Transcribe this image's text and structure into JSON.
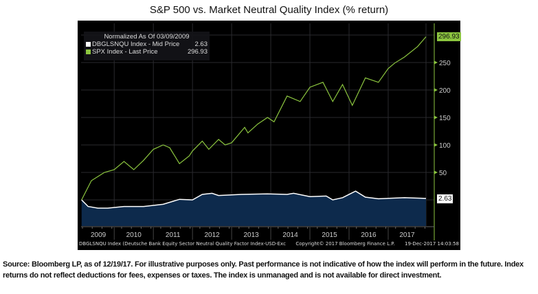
{
  "chart_data": {
    "type": "line",
    "title": "S&P 500 vs. Market Neutral Quality Index (% return)",
    "legend": {
      "header": "Normalized As Of 03/09/2009",
      "placement": "top-left",
      "entries": [
        {
          "name": "DBGLSNQU Index - Mid Price",
          "last": "2.63",
          "color": "#ffffff"
        },
        {
          "name": "SPX Index - Last Price",
          "last": "296.93",
          "color": "#8cc63f"
        }
      ]
    },
    "x_tick_labels": [
      "2009",
      "2010",
      "2011",
      "2012",
      "2013",
      "2014",
      "2015",
      "2016",
      "2017"
    ],
    "y_ticks": [
      50,
      100,
      150,
      200,
      250
    ],
    "ylim": [
      -48,
      300
    ],
    "xlim": [
      "2009-03-09",
      "2017-12-19"
    ],
    "y_axis_side": "right",
    "grid": true,
    "series": [
      {
        "name": "SPX Index - Last Price",
        "color": "#8cc63f",
        "points": [
          [
            "2009-03",
            0
          ],
          [
            "2009-06",
            35
          ],
          [
            "2009-10",
            50
          ],
          [
            "2010-01",
            55
          ],
          [
            "2010-04",
            70
          ],
          [
            "2010-07",
            55
          ],
          [
            "2010-10",
            72
          ],
          [
            "2011-01",
            92
          ],
          [
            "2011-04",
            100
          ],
          [
            "2011-06",
            95
          ],
          [
            "2011-09",
            66
          ],
          [
            "2011-12",
            80
          ],
          [
            "2012-01",
            89
          ],
          [
            "2012-04",
            107
          ],
          [
            "2012-06",
            92
          ],
          [
            "2012-09",
            110
          ],
          [
            "2012-11",
            100
          ],
          [
            "2013-01",
            104
          ],
          [
            "2013-05",
            132
          ],
          [
            "2013-06",
            122
          ],
          [
            "2013-09",
            138
          ],
          [
            "2013-12",
            150
          ],
          [
            "2014-02",
            142
          ],
          [
            "2014-06",
            189
          ],
          [
            "2014-10",
            179
          ],
          [
            "2015-01",
            205
          ],
          [
            "2015-05",
            214
          ],
          [
            "2015-08",
            179
          ],
          [
            "2015-11",
            210
          ],
          [
            "2016-02",
            172
          ],
          [
            "2016-06",
            222
          ],
          [
            "2016-10",
            214
          ],
          [
            "2017-01",
            239
          ],
          [
            "2017-03",
            249
          ],
          [
            "2017-06",
            260
          ],
          [
            "2017-10",
            279
          ],
          [
            "2017-12-19",
            296.93
          ]
        ]
      },
      {
        "name": "DBGLSNQU Index - Mid Price",
        "color": "#ffffff",
        "fill": "#0d2a4c",
        "points": [
          [
            "2009-03",
            0
          ],
          [
            "2009-05",
            -12
          ],
          [
            "2009-08",
            -15
          ],
          [
            "2009-11",
            -15
          ],
          [
            "2010-04",
            -12
          ],
          [
            "2010-10",
            -12
          ],
          [
            "2011-04",
            -8
          ],
          [
            "2011-09",
            1
          ],
          [
            "2012-01",
            0
          ],
          [
            "2012-04",
            10
          ],
          [
            "2012-07",
            12
          ],
          [
            "2012-09",
            8
          ],
          [
            "2013-04",
            10
          ],
          [
            "2013-12",
            11
          ],
          [
            "2014-06",
            10
          ],
          [
            "2014-08",
            12
          ],
          [
            "2015-01",
            6
          ],
          [
            "2015-06",
            7
          ],
          [
            "2015-08",
            0
          ],
          [
            "2015-11",
            4
          ],
          [
            "2016-03",
            16
          ],
          [
            "2016-06",
            5
          ],
          [
            "2016-10",
            2
          ],
          [
            "2017-06",
            4
          ],
          [
            "2017-12-19",
            2.63
          ]
        ]
      }
    ],
    "last_value_labels": [
      "296.93",
      "2.63"
    ]
  },
  "footer": {
    "left": "DBGLSNQU Index (Deutsche Bank Equity Sector Neutral Quality Factor Index-USD-Exc",
    "center": "Copyright© 2017 Bloomberg Finance L.P.",
    "right": "19-Dec-2017 14:03:58"
  },
  "source_note": "Source: Bloomberg LP, as of 12/19/17. For illustrative purposes only. Past performance is not indicative of how the index will perform in the future. Index returns do not reflect deductions for fees, expenses or taxes. The index is unmanaged and is not available for direct investment."
}
